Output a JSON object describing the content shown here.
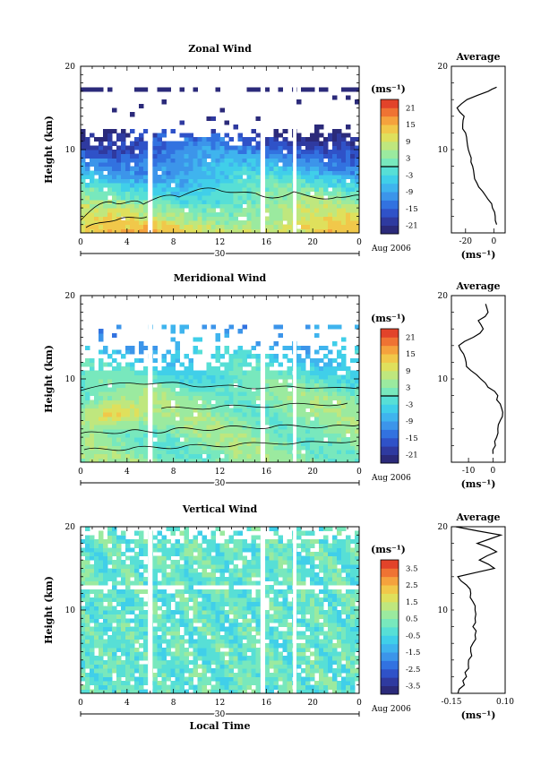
{
  "chart_data": [
    {
      "type": "heatmap",
      "title": "Zonal Wind",
      "ylabel": "Height (km)",
      "x_ticks": [
        "0",
        "4",
        "8",
        "12",
        "16",
        "20",
        "0"
      ],
      "y_ticks": [
        "20",
        "10"
      ],
      "xlim_hours": [
        0,
        24
      ],
      "ylim_km": [
        0,
        20
      ],
      "date_day": "30",
      "date_label": "Aug 2006",
      "colorbar_unit": "(ms⁻¹)",
      "colorbar_ticks": [
        "21",
        "15",
        "9",
        "3",
        "-3",
        "-9",
        "-15",
        "-21"
      ],
      "zero_contour": true,
      "data_gaps_hours": [
        [
          5.8,
          6.2
        ],
        [
          15.5,
          15.9
        ],
        [
          18.3,
          18.6
        ]
      ],
      "average_profile": {
        "title": "Average",
        "x_ticks": [
          "-20",
          "0"
        ],
        "xlim": [
          -30,
          8
        ],
        "xlabel": "(ms⁻¹)",
        "y_ticks": [
          "20",
          "10"
        ],
        "heights_km": [
          1,
          2,
          3,
          4,
          5,
          6,
          7,
          8,
          9,
          10,
          11,
          12,
          13,
          14,
          15,
          16,
          17,
          17.5
        ],
        "values": [
          2,
          1,
          -1,
          -4,
          -8,
          -12,
          -14,
          -15,
          -16,
          -18,
          -19,
          -20,
          -22,
          -21,
          -26,
          -19,
          -4,
          2
        ]
      }
    },
    {
      "type": "heatmap",
      "title": "Meridional Wind",
      "ylabel": "Height (km)",
      "x_ticks": [
        "0",
        "4",
        "8",
        "12",
        "16",
        "20",
        "0"
      ],
      "y_ticks": [
        "20",
        "10"
      ],
      "xlim_hours": [
        0,
        24
      ],
      "ylim_km": [
        0,
        20
      ],
      "date_day": "30",
      "date_label": "Aug 2006",
      "colorbar_unit": "(ms⁻¹)",
      "colorbar_ticks": [
        "21",
        "15",
        "9",
        "3",
        "-3",
        "-9",
        "-15",
        "-21"
      ],
      "zero_contour": true,
      "data_gaps_hours": [
        [
          5.8,
          6.2
        ],
        [
          15.5,
          15.9
        ],
        [
          18.3,
          18.6
        ]
      ],
      "average_profile": {
        "title": "Average",
        "x_ticks": [
          "-10",
          "0"
        ],
        "xlim": [
          -17,
          5
        ],
        "xlabel": "(ms⁻¹)",
        "y_ticks": [
          "20",
          "10"
        ],
        "heights_km": [
          1,
          2,
          3,
          4,
          5,
          6,
          7,
          8,
          9,
          10,
          11,
          12,
          13,
          14,
          15,
          16,
          17,
          18,
          19
        ],
        "values": [
          0,
          1,
          1.5,
          2,
          3,
          4,
          3,
          2,
          -2,
          -5,
          -9,
          -11,
          -12,
          -14,
          -8,
          -4,
          -6,
          -2,
          -3
        ]
      }
    },
    {
      "type": "heatmap",
      "title": "Vertical Wind",
      "ylabel": "Height (km)",
      "xlabel": "Local Time",
      "x_ticks": [
        "0",
        "4",
        "8",
        "12",
        "16",
        "20",
        "0"
      ],
      "y_ticks": [
        "20",
        "10"
      ],
      "xlim_hours": [
        0,
        24
      ],
      "ylim_km": [
        0,
        20
      ],
      "date_day": "30",
      "date_label": "Aug 2006",
      "colorbar_unit": "(ms⁻¹)",
      "colorbar_ticks": [
        "3.5",
        "2.5",
        "1.5",
        "0.5",
        "-0.5",
        "-1.5",
        "-2.5",
        "-3.5"
      ],
      "zero_contour": false,
      "data_gaps_hours": [
        [
          5.8,
          6.2
        ],
        [
          15.5,
          15.9
        ],
        [
          18.3,
          18.6
        ]
      ],
      "average_profile": {
        "title": "Average",
        "x_ticks": [
          "-0.15",
          "0.10"
        ],
        "xlim": [
          -0.15,
          0.1
        ],
        "xlabel": "(ms⁻¹)",
        "y_ticks": [
          "20",
          "10"
        ],
        "heights_km": [
          0,
          1,
          2,
          3,
          4,
          5,
          6,
          7,
          8,
          9,
          10,
          11,
          12,
          13,
          14,
          15,
          16,
          17,
          18,
          19,
          20
        ],
        "values": [
          -0.12,
          -0.09,
          -0.08,
          -0.07,
          -0.07,
          -0.06,
          -0.05,
          -0.04,
          -0.05,
          -0.04,
          -0.04,
          -0.05,
          -0.06,
          -0.08,
          -0.12,
          0.05,
          -0.02,
          0.06,
          -0.03,
          0.08,
          -0.13
        ]
      }
    }
  ]
}
